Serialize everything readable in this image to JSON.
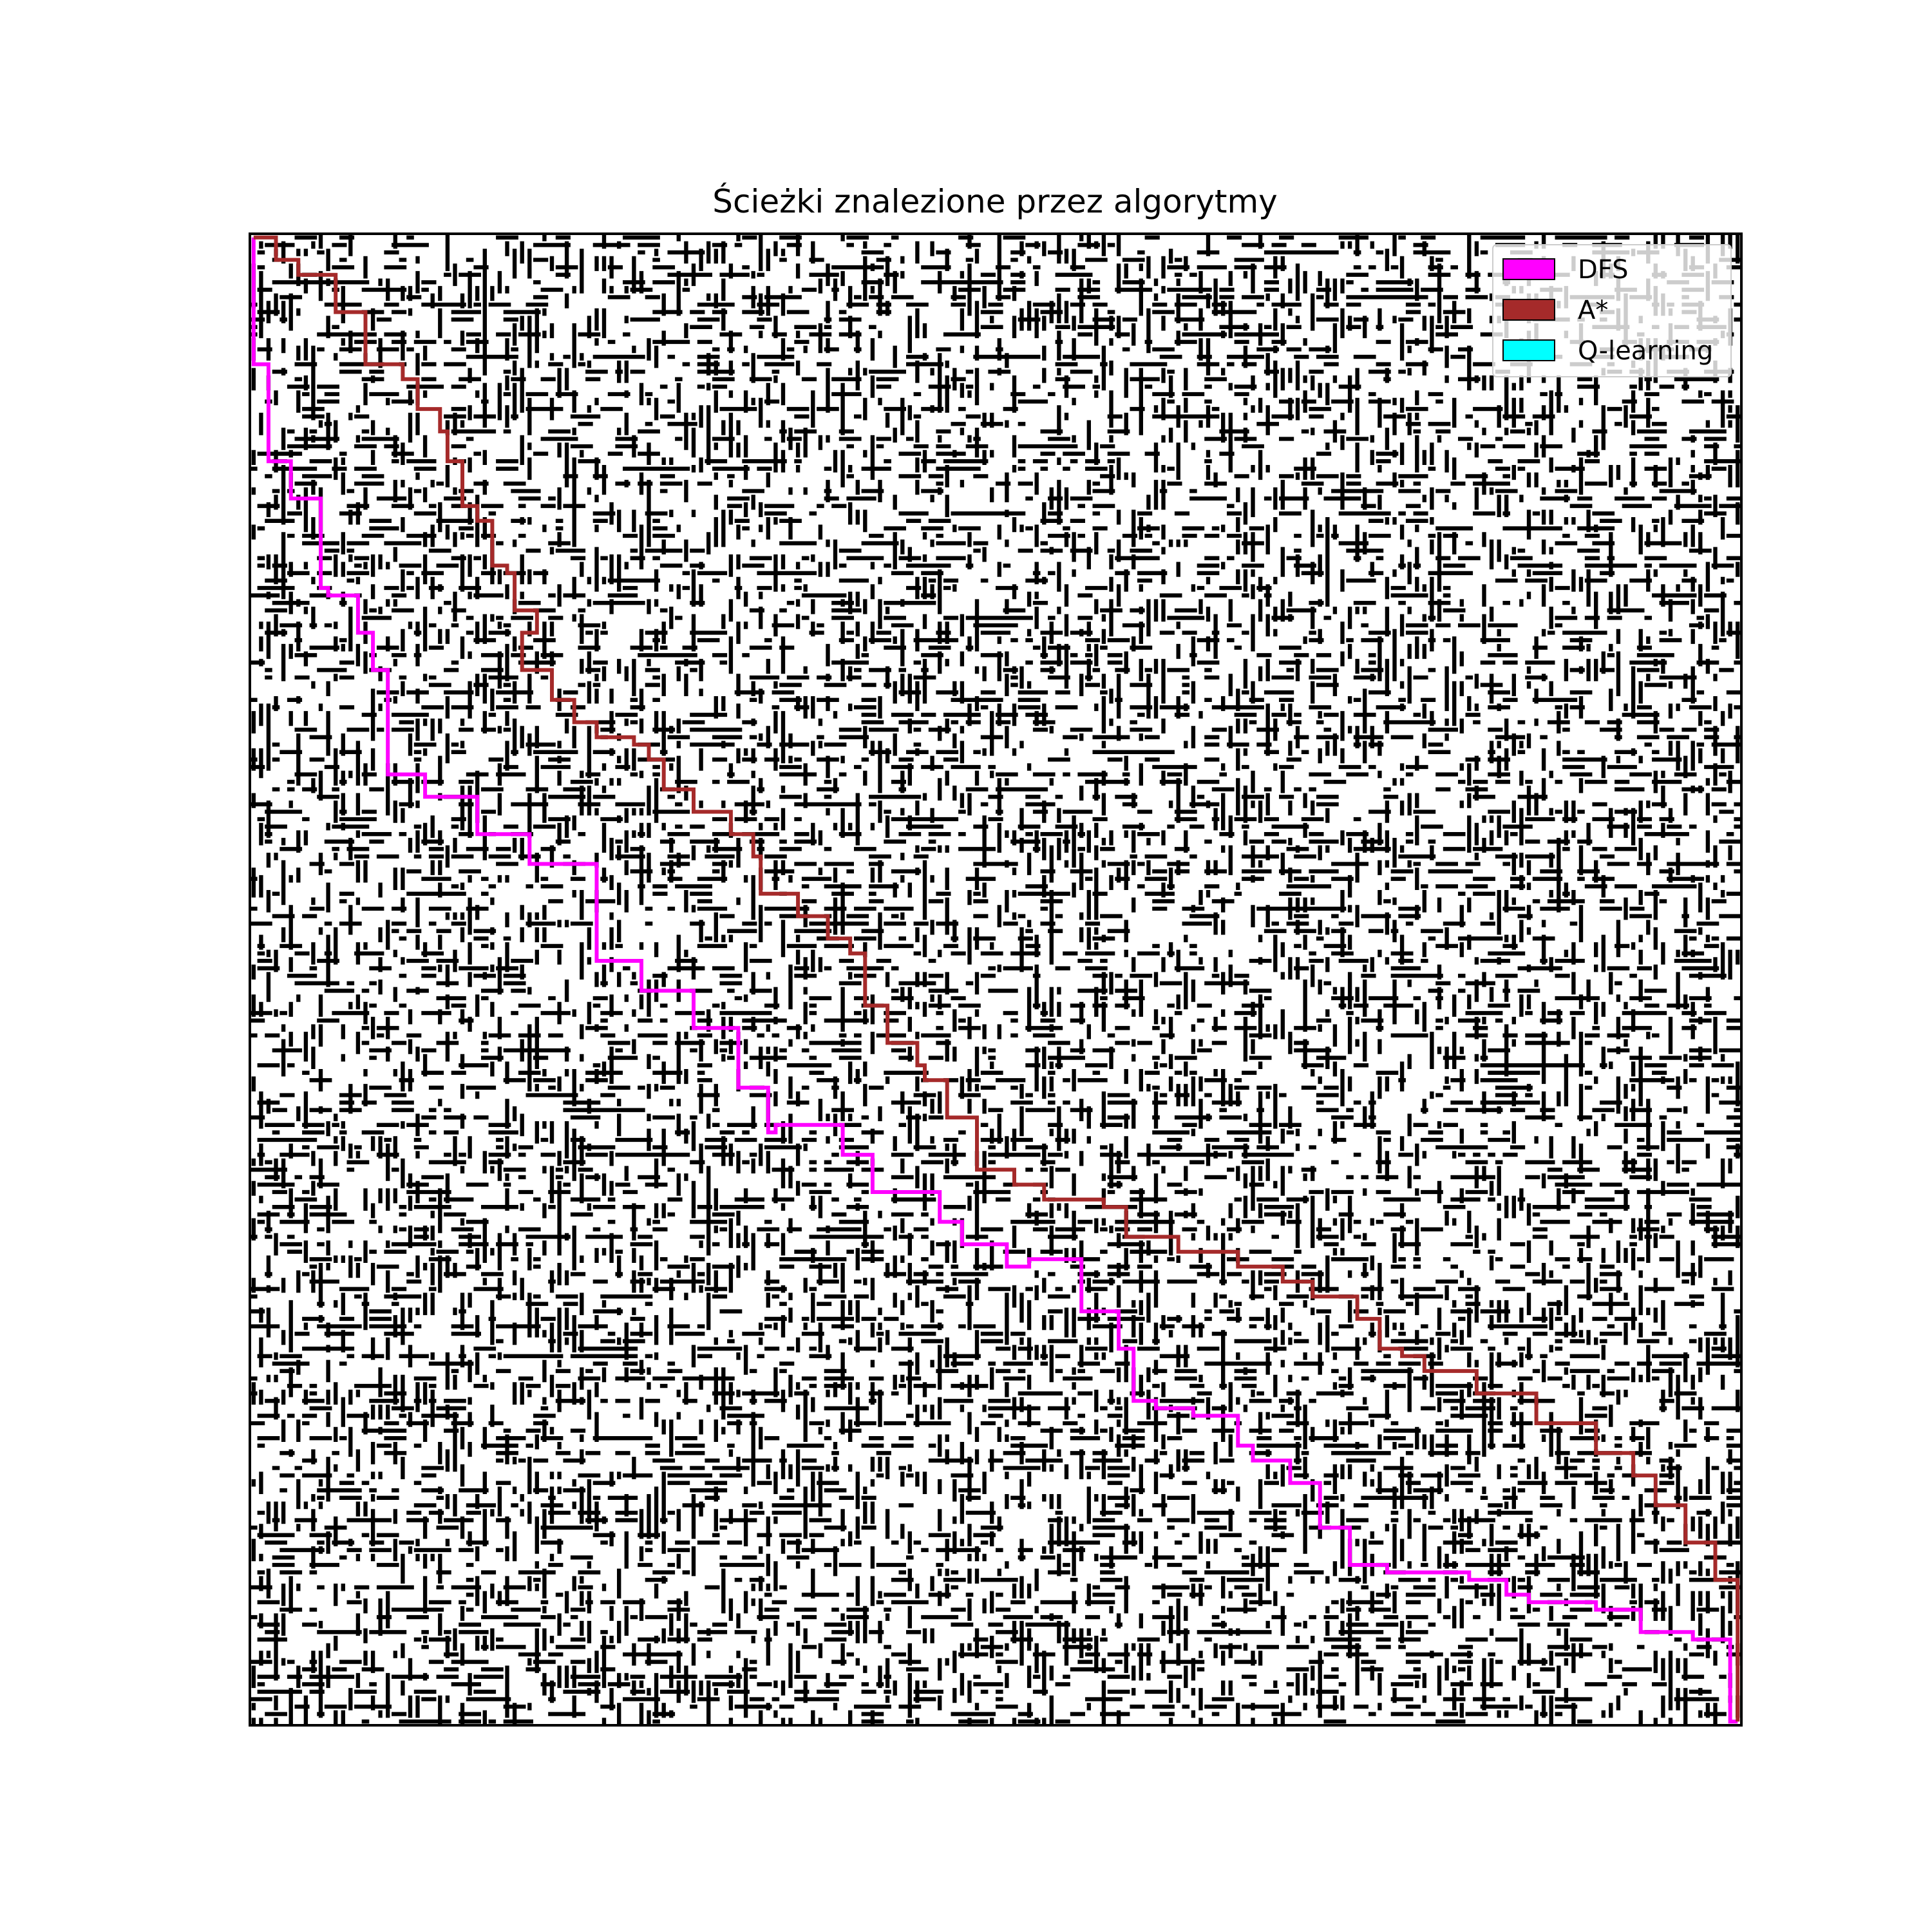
{
  "chart_data": {
    "type": "heatmap",
    "title": "Ścieżki znalezione przez algorytmy",
    "xlabel": "",
    "ylabel": "",
    "grid_size": 200,
    "wall_density": 0.3,
    "axes_ticks": false,
    "legend": {
      "placement": "top-right",
      "entries": [
        {
          "label": "DFS",
          "color": "#ff00ff"
        },
        {
          "label": "A*",
          "color": "#a52a2a"
        },
        {
          "label": "Q-learning",
          "color": "#00ffff"
        }
      ]
    },
    "series": [
      {
        "name": "DFS",
        "color": "#ff00ff",
        "points": [
          [
            0,
            0
          ],
          [
            0,
            17
          ],
          [
            2,
            17
          ],
          [
            2,
            23
          ],
          [
            5,
            30
          ],
          [
            9,
            35
          ],
          [
            10,
            47
          ],
          [
            14,
            48
          ],
          [
            16,
            53
          ],
          [
            18,
            58
          ],
          [
            23,
            72
          ],
          [
            30,
            75
          ],
          [
            37,
            80
          ],
          [
            46,
            84
          ],
          [
            52,
            97
          ],
          [
            59,
            101
          ],
          [
            65,
            106
          ],
          [
            69,
            114
          ],
          [
            70,
            120
          ],
          [
            79,
            119
          ],
          [
            83,
            123
          ],
          [
            86,
            128
          ],
          [
            92,
            128
          ],
          [
            95,
            132
          ],
          [
            101,
            135
          ],
          [
            104,
            138
          ],
          [
            111,
            137
          ],
          [
            116,
            144
          ],
          [
            118,
            149
          ],
          [
            121,
            156
          ],
          [
            126,
            157
          ],
          [
            132,
            158
          ],
          [
            134,
            162
          ],
          [
            139,
            164
          ],
          [
            143,
            167
          ],
          [
            147,
            173
          ],
          [
            152,
            178
          ],
          [
            163,
            179
          ],
          [
            168,
            180
          ],
          [
            171,
            182
          ],
          [
            180,
            183
          ],
          [
            186,
            184
          ],
          [
            193,
            187
          ],
          [
            198,
            188
          ],
          [
            199,
            199
          ]
        ]
      },
      {
        "name": "A*",
        "color": "#a52a2a",
        "points": [
          [
            0,
            0
          ],
          [
            3,
            3
          ],
          [
            6,
            5
          ],
          [
            11,
            10
          ],
          [
            15,
            17
          ],
          [
            20,
            19
          ],
          [
            22,
            23
          ],
          [
            25,
            26
          ],
          [
            26,
            30
          ],
          [
            28,
            36
          ],
          [
            30,
            38
          ],
          [
            32,
            44
          ],
          [
            34,
            45
          ],
          [
            35,
            50
          ],
          [
            38,
            53
          ],
          [
            36,
            58
          ],
          [
            40,
            62
          ],
          [
            43,
            65
          ],
          [
            46,
            67
          ],
          [
            51,
            68
          ],
          [
            53,
            70
          ],
          [
            55,
            74
          ],
          [
            59,
            77
          ],
          [
            64,
            80
          ],
          [
            67,
            83
          ],
          [
            68,
            88
          ],
          [
            73,
            91
          ],
          [
            77,
            94
          ],
          [
            80,
            96
          ],
          [
            82,
            103
          ],
          [
            85,
            108
          ],
          [
            89,
            111
          ],
          [
            90,
            113
          ],
          [
            93,
            118
          ],
          [
            97,
            125
          ],
          [
            102,
            127
          ],
          [
            106,
            129
          ],
          [
            114,
            130
          ],
          [
            117,
            134
          ],
          [
            124,
            136
          ],
          [
            132,
            138
          ],
          [
            138,
            140
          ],
          [
            142,
            142
          ],
          [
            148,
            145
          ],
          [
            151,
            149
          ],
          [
            154,
            150
          ],
          [
            157,
            152
          ],
          [
            164,
            155
          ],
          [
            172,
            159
          ],
          [
            180,
            163
          ],
          [
            185,
            166
          ],
          [
            188,
            170
          ],
          [
            192,
            175
          ],
          [
            196,
            180
          ],
          [
            199,
            199
          ]
        ]
      },
      {
        "name": "Q-learning",
        "color": "#00ffff",
        "points": []
      }
    ]
  }
}
